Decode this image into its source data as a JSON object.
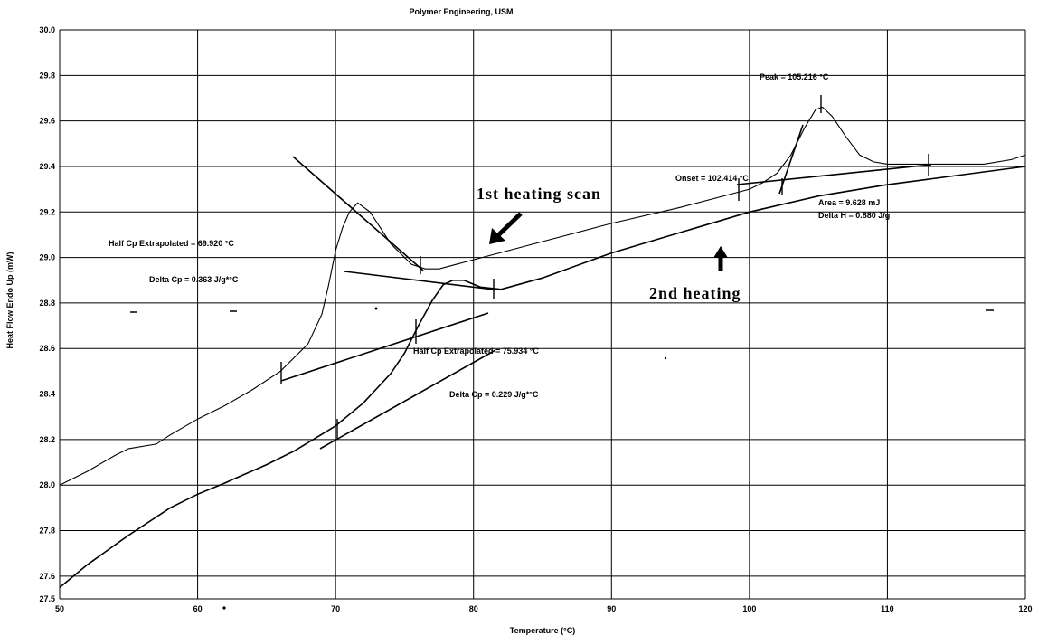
{
  "chart_data": {
    "type": "line",
    "title": "Polymer Engineering, USM",
    "xlabel": "Temperature (°C)",
    "ylabel": "Heat Flow Endo Up (mW)",
    "xlim": [
      50,
      120
    ],
    "ylim": [
      27.5,
      30.0
    ],
    "grid": true,
    "x_ticks": [
      50,
      60,
      70,
      80,
      90,
      100,
      110,
      120
    ],
    "y_ticks": [
      27.5,
      27.6,
      27.8,
      28.0,
      28.2,
      28.4,
      28.6,
      28.8,
      29.0,
      29.2,
      29.4,
      29.6,
      29.8,
      30.0
    ],
    "series": [
      {
        "x": [
          50,
          52,
          54,
          55,
          57,
          58,
          60,
          62,
          64,
          66,
          68,
          69,
          69.5,
          70,
          70.5,
          71,
          71.6,
          72.5,
          74,
          75.5,
          76.5,
          77.5,
          80,
          85,
          90,
          95,
          100,
          101,
          102,
          103,
          104,
          104.8,
          105.3,
          106,
          107,
          108,
          109,
          110,
          111,
          113,
          115,
          117,
          119,
          120
        ],
        "y": [
          28.0,
          28.06,
          28.13,
          28.16,
          28.18,
          28.22,
          28.29,
          28.35,
          28.42,
          28.5,
          28.62,
          28.75,
          28.88,
          29.03,
          29.13,
          29.2,
          29.24,
          29.2,
          29.06,
          28.97,
          28.95,
          28.95,
          28.99,
          29.07,
          29.15,
          29.22,
          29.3,
          29.33,
          29.37,
          29.45,
          29.57,
          29.65,
          29.66,
          29.62,
          29.53,
          29.45,
          29.42,
          29.41,
          29.41,
          29.41,
          29.41,
          29.41,
          29.43,
          29.45
        ]
      },
      {
        "x": [
          50,
          52,
          55,
          58,
          60,
          62,
          65,
          67,
          70,
          72,
          74,
          75,
          76,
          77,
          77.8,
          78.5,
          79.3,
          80.5,
          82,
          85,
          90,
          95,
          100,
          105,
          110,
          115,
          120
        ],
        "y": [
          27.55,
          27.65,
          27.78,
          27.9,
          27.96,
          28.01,
          28.09,
          28.15,
          28.26,
          28.36,
          28.49,
          28.58,
          28.7,
          28.81,
          28.88,
          28.9,
          28.9,
          28.87,
          28.86,
          28.91,
          29.02,
          29.11,
          29.2,
          29.27,
          29.32,
          29.36,
          29.4
        ]
      }
    ],
    "annotations": [
      {
        "text": "Peak = 105.216 °C"
      },
      {
        "text": "Onset = 102.414 °C"
      },
      {
        "text": "Area = 9.628 mJ"
      },
      {
        "text": "Delta H = 0.880 J/g"
      },
      {
        "text": "Half Cp Extrapolated = 69.920 °C"
      },
      {
        "text": "Delta Cp = 0.363 J/g*°C"
      },
      {
        "text": "Half Cp Extrapolated = 75.934 °C"
      },
      {
        "text": "Delta Cp = 0.229 J/g*°C"
      },
      {
        "text": "1st heating scan"
      },
      {
        "text": "2nd heating"
      }
    ]
  }
}
